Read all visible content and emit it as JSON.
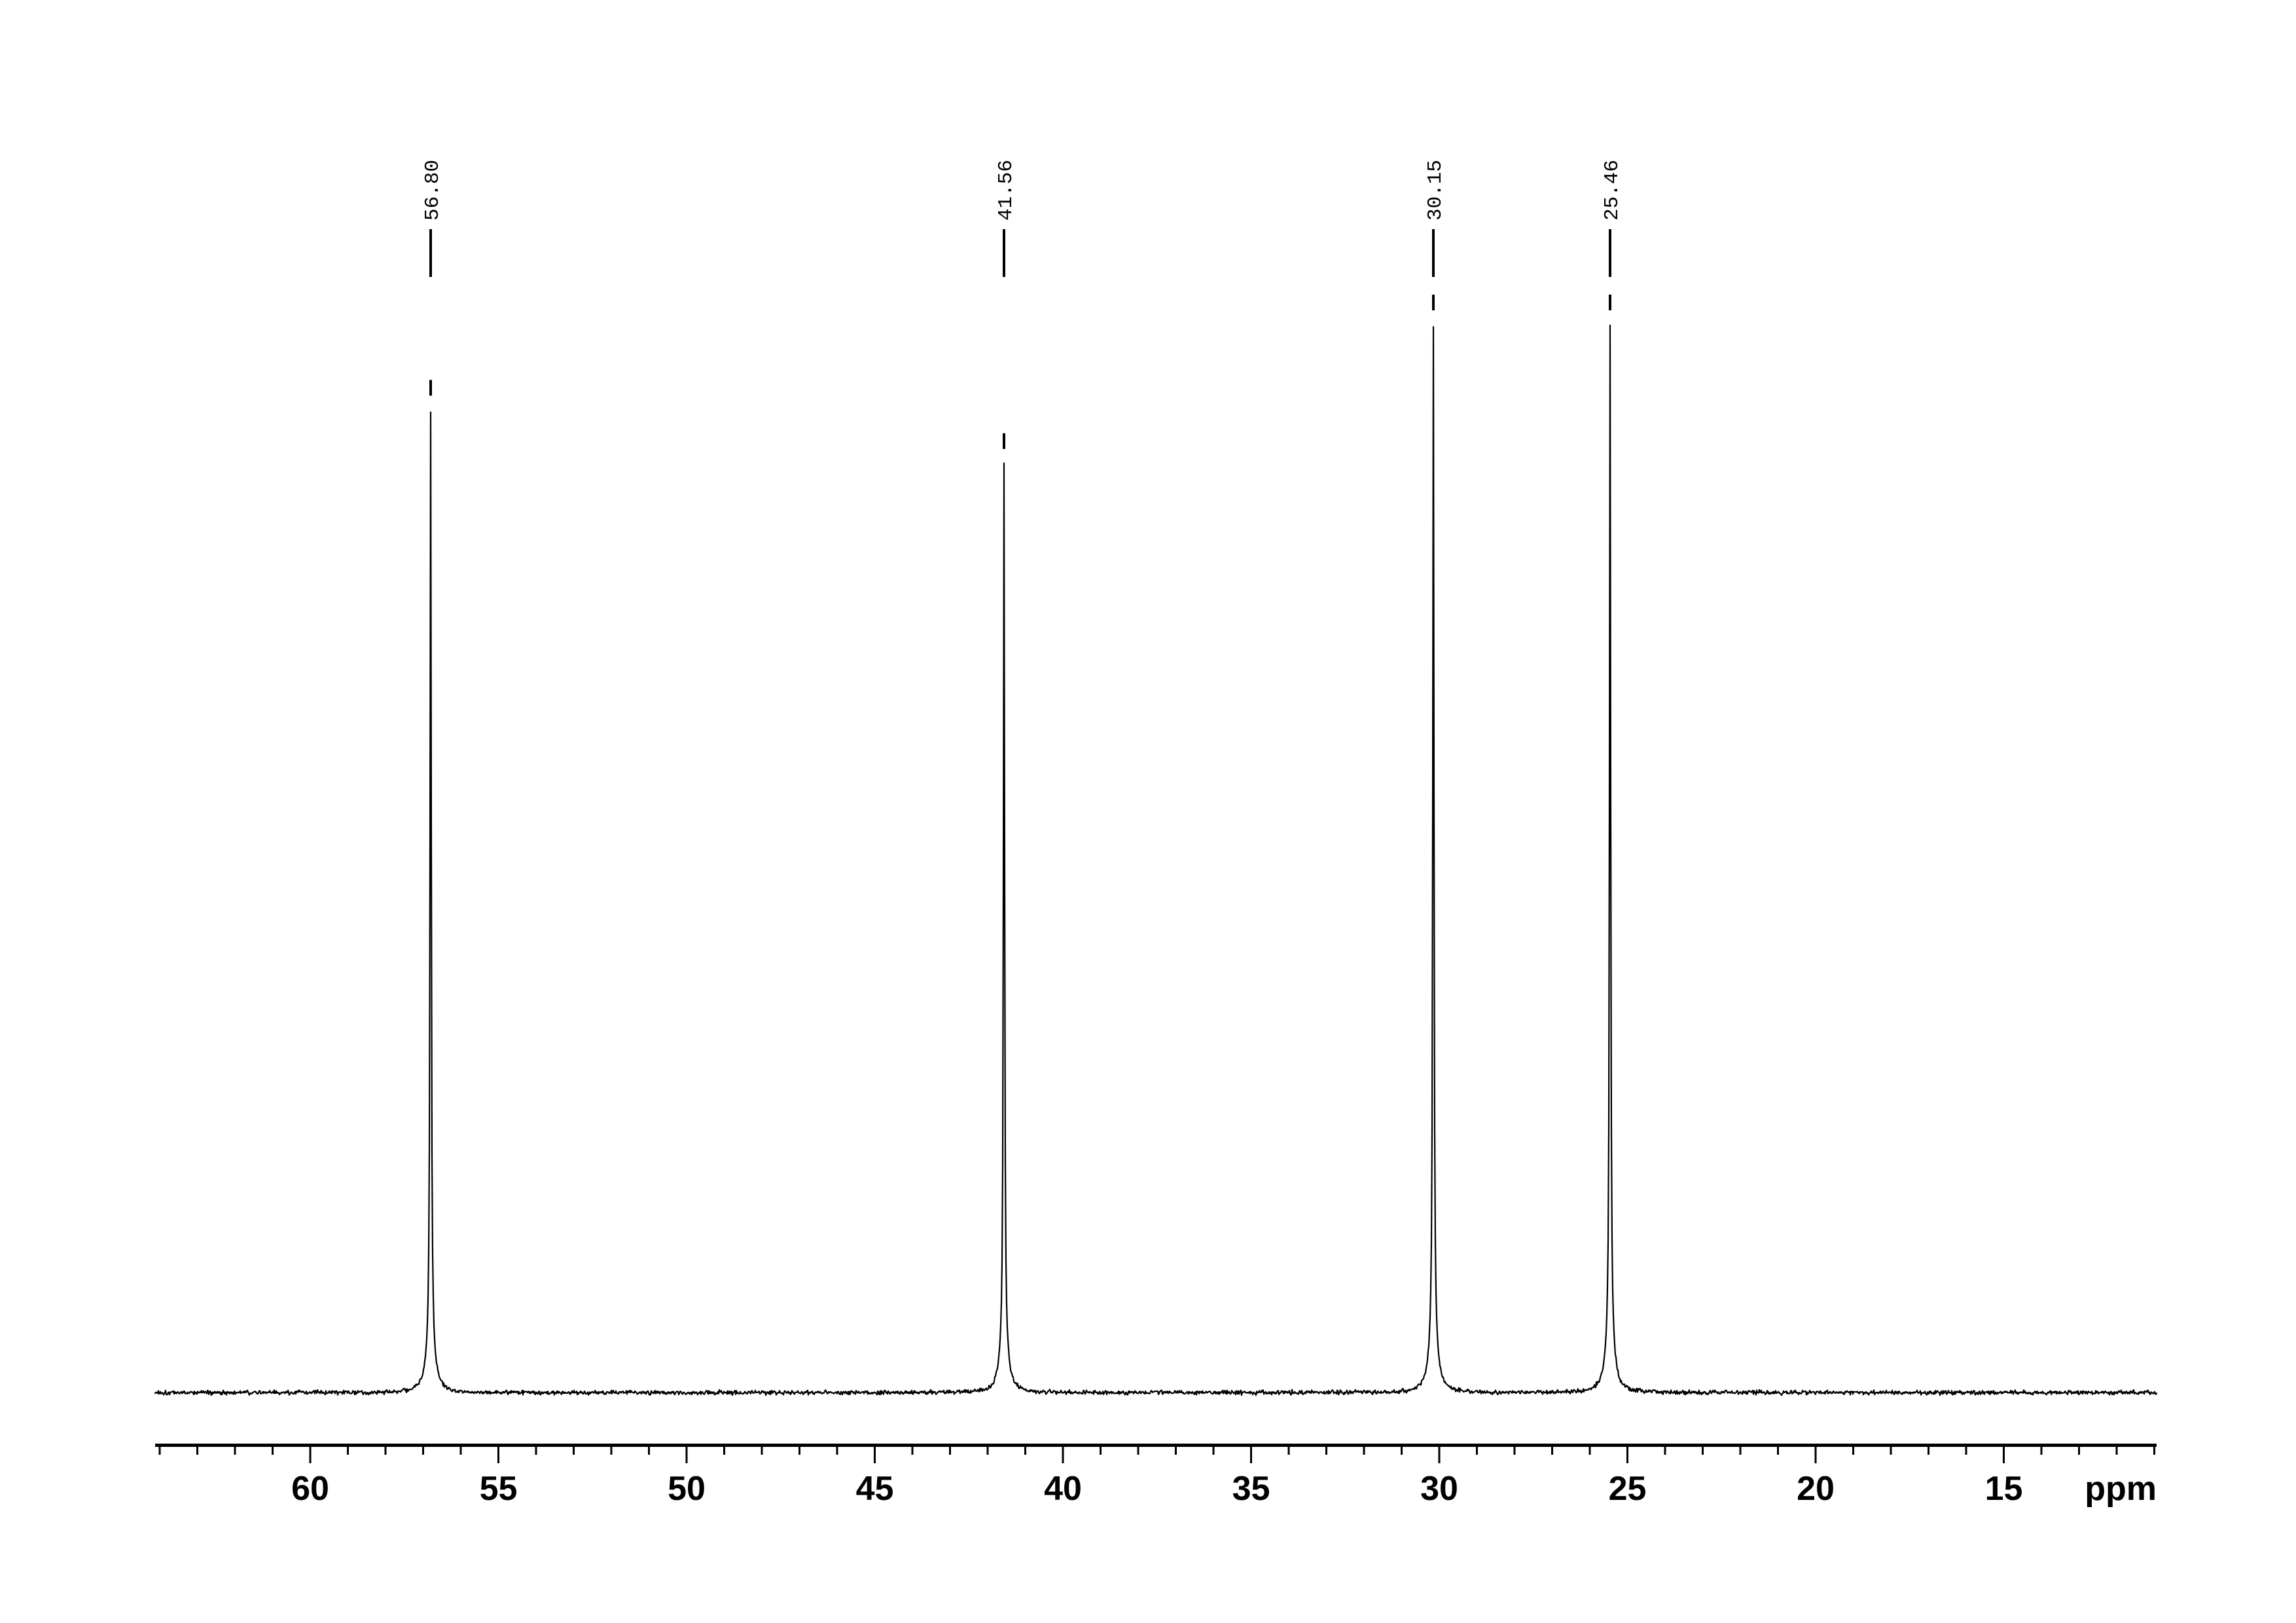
{
  "page": {
    "background_color": "#ffffff",
    "foreground_color": "#000000"
  },
  "chart_data": {
    "type": "line",
    "kind": "NMR spectrum",
    "title": "",
    "xlabel": "ppm",
    "ylabel": "",
    "x_axis": {
      "unit": "ppm",
      "visible_range": [
        64.1,
        10.9
      ],
      "direction": "values decrease to the right",
      "major_ticks": [
        {
          "value": 60,
          "label": "60"
        },
        {
          "value": 55,
          "label": "55"
        },
        {
          "value": 50,
          "label": "50"
        },
        {
          "value": 45,
          "label": "45"
        },
        {
          "value": 40,
          "label": "40"
        },
        {
          "value": 35,
          "label": "35"
        },
        {
          "value": 30,
          "label": "30"
        },
        {
          "value": 25,
          "label": "25"
        },
        {
          "value": 20,
          "label": "20"
        },
        {
          "value": 15,
          "label": "15"
        }
      ],
      "minor_tick_step": 1,
      "grid": false
    },
    "baseline": {
      "description": "flat baseline with low-amplitude noise",
      "relative_level": 0.0
    },
    "peaks": [
      {
        "ppm": 56.8,
        "label": "56.80",
        "relative_height": 0.92
      },
      {
        "ppm": 41.56,
        "label": "41.56",
        "relative_height": 0.87
      },
      {
        "ppm": 30.15,
        "label": "30.15",
        "relative_height": 1.0
      },
      {
        "ppm": 25.46,
        "label": "25.46",
        "relative_height": 1.0
      }
    ],
    "legend": null,
    "annotation_style": "each peak labeled with chemical shift in rotated monospace text above a vertical leader line and a short dash above the peak top"
  }
}
